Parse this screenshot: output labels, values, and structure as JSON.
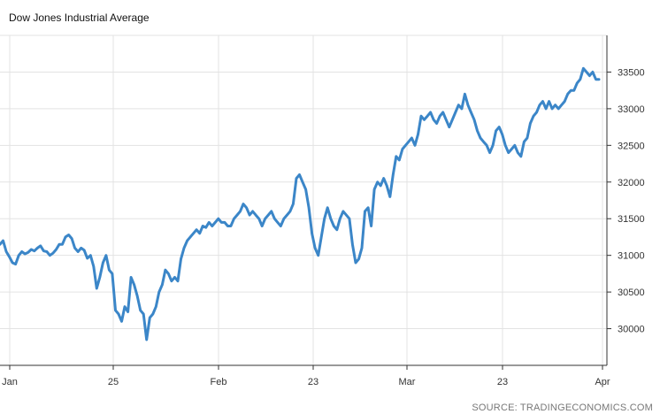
{
  "title": "Dow Jones Industrial Average",
  "source": "SOURCE: TRADINGECONOMICS.COM",
  "colors": {
    "line": "#3b86c8",
    "grid": "#e3e3e3"
  },
  "chart_data": {
    "type": "line",
    "title": "Dow Jones Industrial Average",
    "xlabel": "",
    "ylabel": "",
    "x_tick_labels": [
      "Jan",
      "25",
      "Feb",
      "23",
      "Mar",
      "23",
      "Apr"
    ],
    "y_tick_labels": [
      "30000",
      "30500",
      "31000",
      "31500",
      "32000",
      "32500",
      "33000",
      "33500"
    ],
    "ylim": [
      29500,
      34000
    ],
    "y_axis_side": "right",
    "grid": true,
    "legend": "none",
    "series": [
      {
        "values": [
          31150,
          31200,
          31050,
          30980,
          30900,
          30880,
          31000,
          31050,
          31020,
          31040,
          31080,
          31060,
          31100,
          31130,
          31060,
          31050,
          31000,
          31030,
          31080,
          31150,
          31150,
          31250,
          31280,
          31230,
          31100,
          31050,
          31100,
          31070,
          30960,
          31000,
          30850,
          30550,
          30700,
          30900,
          31000,
          30800,
          30750,
          30250,
          30200,
          30100,
          30300,
          30230,
          30700,
          30600,
          30450,
          30250,
          30200,
          29850,
          30150,
          30200,
          30300,
          30500,
          30600,
          30800,
          30750,
          30650,
          30700,
          30650,
          30950,
          31100,
          31200,
          31250,
          31300,
          31350,
          31300,
          31400,
          31380,
          31450,
          31400,
          31450,
          31500,
          31450,
          31450,
          31400,
          31400,
          31500,
          31550,
          31600,
          31700,
          31650,
          31550,
          31600,
          31550,
          31500,
          31400,
          31500,
          31550,
          31600,
          31500,
          31450,
          31400,
          31500,
          31550,
          31600,
          31700,
          32050,
          32100,
          32000,
          31900,
          31650,
          31300,
          31100,
          31000,
          31250,
          31500,
          31650,
          31500,
          31400,
          31350,
          31500,
          31600,
          31550,
          31500,
          31150,
          30900,
          30950,
          31100,
          31600,
          31650,
          31400,
          31900,
          32000,
          31950,
          32050,
          31950,
          31800,
          32100,
          32350,
          32300,
          32450,
          32500,
          32550,
          32600,
          32500,
          32650,
          32900,
          32850,
          32900,
          32950,
          32850,
          32800,
          32900,
          32950,
          32850,
          32750,
          32850,
          32950,
          33050,
          33000,
          33200,
          33050,
          32950,
          32850,
          32700,
          32600,
          32550,
          32500,
          32400,
          32500,
          32700,
          32750,
          32650,
          32500,
          32400,
          32450,
          32500,
          32400,
          32350,
          32550,
          32600,
          32800,
          32900,
          32950,
          33050,
          33100,
          33000,
          33100,
          33000,
          33050,
          33000,
          33050,
          33100,
          33200,
          33250,
          33250,
          33350,
          33400,
          33550,
          33500,
          33450,
          33500,
          33400,
          33400
        ]
      }
    ]
  }
}
